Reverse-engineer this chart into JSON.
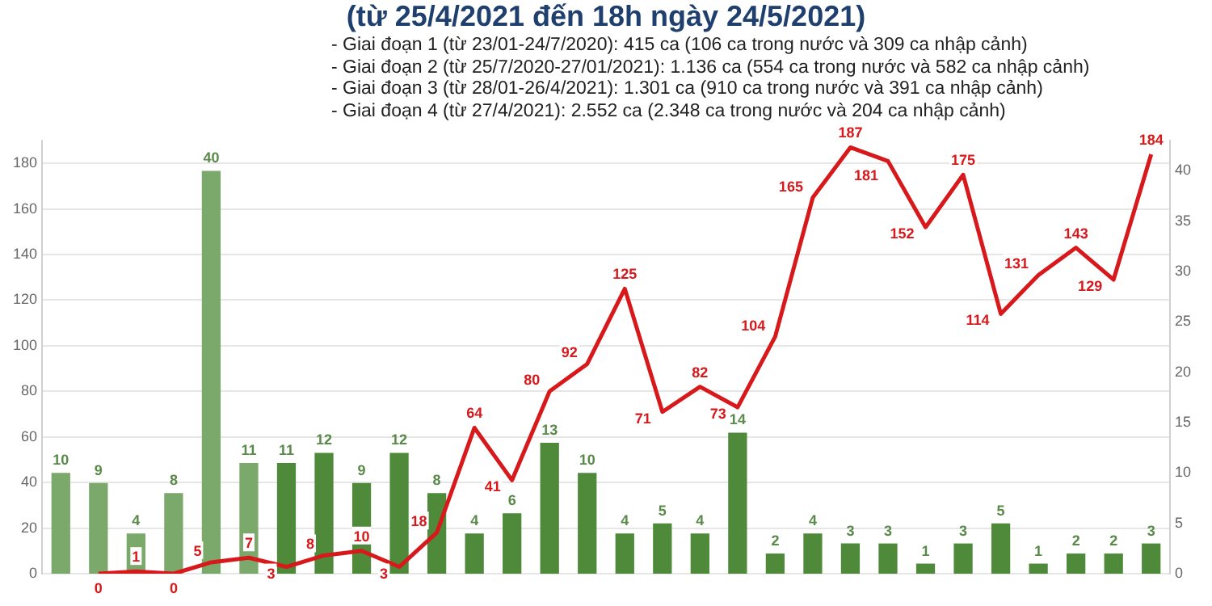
{
  "chart_data": {
    "type": "bar",
    "title": "(từ 25/4/2021 đến 18h ngày 24/5/2021)",
    "annotations": [
      "- Giai đoạn 1 (từ 23/01-24/7/2020): 415 ca (106 ca trong nước và 309 ca nhập cảnh)",
      "- Giai đoạn 2 (từ 25/7/2020-27/01/2021): 1.136 ca (554 ca trong nước và 582 ca nhập cảnh)",
      "- Giai đoạn 3 (từ 28/01-26/4/2021): 1.301 ca (910 ca trong nước và 391 ca nhập cảnh)",
      "- Giai đoạn 4 (từ 27/4/2021): 2.552 ca (2.348 ca trong nước và 204 ca nhập cảnh)"
    ],
    "categories": [
      null,
      null,
      null,
      null,
      null,
      null,
      null,
      null,
      null,
      null,
      null,
      null,
      null,
      null,
      null,
      null,
      null,
      null,
      null,
      null,
      null,
      null,
      null,
      null,
      null,
      null,
      null,
      null,
      null,
      null
    ],
    "series": [
      {
        "axis": "y2",
        "color": "#4e8a3a",
        "colors": [
          "#7ba86b",
          "#7ba86b",
          "#7ba86b",
          "#7ba86b",
          "#7ba86b",
          "#7ba86b",
          "#4e8a3a",
          "#4e8a3a",
          "#4e8a3a",
          "#4e8a3a",
          "#4e8a3a",
          "#4e8a3a",
          "#4e8a3a",
          "#4e8a3a",
          "#4e8a3a",
          "#4e8a3a",
          "#4e8a3a",
          "#4e8a3a",
          "#4e8a3a",
          "#4e8a3a",
          "#4e8a3a",
          "#4e8a3a",
          "#4e8a3a",
          "#4e8a3a",
          "#4e8a3a",
          "#4e8a3a",
          "#4e8a3a",
          "#4e8a3a",
          "#4e8a3a",
          "#4e8a3a"
        ],
        "values": [
          10,
          9,
          4,
          8,
          40,
          11,
          11,
          12,
          9,
          12,
          8,
          4,
          6,
          13,
          10,
          4,
          5,
          4,
          14,
          2,
          4,
          3,
          3,
          1,
          3,
          5,
          1,
          2,
          2,
          3
        ]
      },
      {
        "type": "line",
        "axis": "y",
        "color": "#d7191c",
        "values": [
          null,
          0,
          1,
          0,
          5,
          7,
          3,
          8,
          10,
          3,
          18,
          64,
          41,
          80,
          92,
          125,
          71,
          82,
          73,
          104,
          165,
          187,
          181,
          152,
          175,
          114,
          131,
          143,
          129,
          184
        ]
      }
    ],
    "ylim": [
      0,
      190
    ],
    "yticks": [
      0,
      20,
      40,
      60,
      80,
      100,
      120,
      140,
      160,
      180
    ],
    "y2lim": [
      0,
      43
    ],
    "y2ticks": [
      0,
      5,
      10,
      15,
      20,
      25,
      30,
      35,
      40
    ],
    "grid": "y",
    "legend": false,
    "data_labels": true,
    "marker": "none",
    "line_style": "solid"
  }
}
